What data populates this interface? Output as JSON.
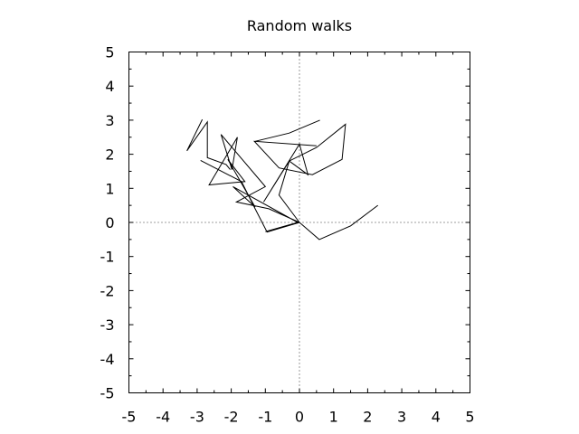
{
  "chart_data": {
    "type": "line",
    "title": "Random walks",
    "xlabel": "",
    "ylabel": "",
    "xlim": [
      -5,
      5
    ],
    "ylim": [
      -5,
      5
    ],
    "xticks": [
      "-5",
      "-4",
      "-3",
      "-2",
      "-1",
      "0",
      "1",
      "2",
      "3",
      "4",
      "5"
    ],
    "yticks": [
      "-5",
      "-4",
      "-3",
      "-2",
      "-1",
      "0",
      "1",
      "2",
      "3",
      "4",
      "5"
    ],
    "grid": false,
    "zero_lines": true,
    "legend": "none",
    "series": [
      {
        "color": "#000000",
        "points": [
          [
            0,
            0
          ],
          [
            -1,
            -0.27
          ],
          [
            -0.05,
            0
          ],
          [
            -1.95,
            1.05
          ],
          [
            -1.3,
            0.45
          ],
          [
            -2.1,
            1.85
          ],
          [
            -1.6,
            1.2
          ],
          [
            -2.65,
            1.1
          ],
          [
            -1.82,
            2.5
          ],
          [
            -1.98,
            1.55
          ],
          [
            -2.3,
            2.58
          ],
          [
            -1,
            1.05
          ],
          [
            -1.85,
            0.6
          ],
          [
            -0.9,
            0.4
          ],
          [
            0,
            0
          ]
        ]
      },
      {
        "color": "#000000",
        "points": [
          [
            0,
            0
          ],
          [
            0.58,
            -0.5
          ],
          [
            1.5,
            -0.1
          ],
          [
            2.3,
            0.5
          ]
        ]
      },
      {
        "color": "#000000",
        "points": [
          [
            0,
            0
          ],
          [
            -0.95,
            -0.28
          ],
          [
            -1.3,
            0.4
          ],
          [
            -1.7,
            1.2
          ],
          [
            -2.9,
            1.82
          ]
        ]
      },
      {
        "color": "#000000",
        "points": [
          [
            0,
            0
          ],
          [
            -0.6,
            0.8
          ],
          [
            -0.3,
            1.8
          ],
          [
            0.25,
            1.4
          ],
          [
            0,
            2.3
          ],
          [
            -1.05,
            0.6
          ],
          [
            -0.3,
            1.8
          ],
          [
            0.5,
            2.2
          ],
          [
            1.35,
            2.88
          ],
          [
            1.25,
            1.85
          ],
          [
            0.38,
            1.4
          ],
          [
            -0.6,
            1.6
          ],
          [
            -1.32,
            2.38
          ],
          [
            0.5,
            2.25
          ]
        ]
      },
      {
        "color": "#000000",
        "points": [
          [
            -2.03,
            1.55
          ],
          [
            -2.15,
            1.7
          ],
          [
            -2.7,
            1.9
          ],
          [
            -2.7,
            2.95
          ],
          [
            -3.3,
            2.1
          ],
          [
            -2.85,
            3.02
          ]
        ]
      },
      {
        "color": "#000000",
        "points": [
          [
            -1.3,
            2.38
          ],
          [
            -0.3,
            2.62
          ],
          [
            0.6,
            3
          ]
        ]
      }
    ]
  }
}
